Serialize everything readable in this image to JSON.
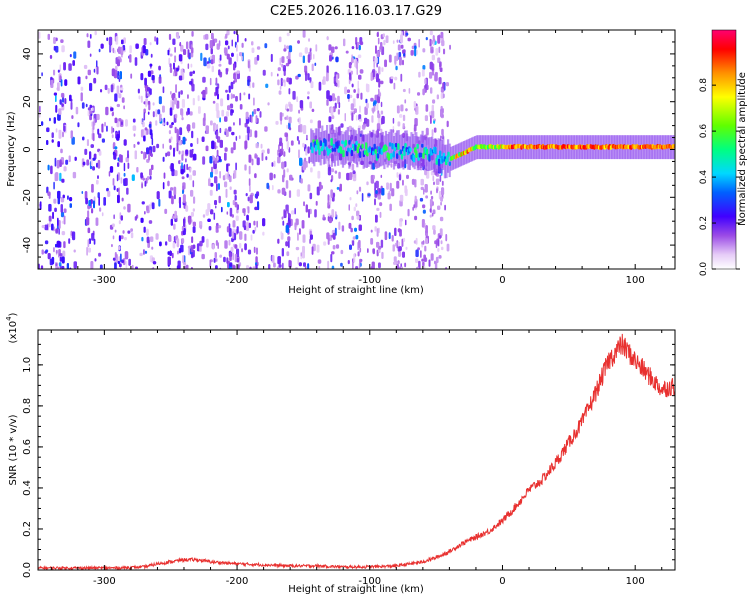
{
  "figure": {
    "title": "C2E5.2026.116.03.17.G29"
  },
  "colorbar": {
    "label": "Normalized spectral amplitude",
    "ticks": [
      "0.0",
      "0.2",
      "0.4",
      "0.6",
      "0.8"
    ]
  },
  "chart_data": [
    {
      "type": "heatmap",
      "xlabel": "Height of straight line (km)",
      "ylabel": "Frequency (Hz)",
      "xlim": [
        -350,
        130
      ],
      "ylim": [
        -50,
        50
      ],
      "x_ticks": [
        -300,
        -200,
        -100,
        0,
        100
      ],
      "y_ticks": [
        -40,
        -20,
        0,
        20,
        40
      ],
      "colorscale": [
        "#ffffff",
        "#e9d7f7",
        "#b57be6",
        "#7a1fe0",
        "#3a00ff",
        "#0040ff",
        "#00c8ff",
        "#00ff80",
        "#80ff00",
        "#ffff00",
        "#ff8000",
        "#ff0000",
        "#ff0080"
      ],
      "zlim": [
        0.0,
        1.0
      ],
      "description_features": {
        "noise_region_x": [
          -350,
          -40
        ],
        "carrier_start_x": -145,
        "carrier_frequency_hz": [
          [
            -145,
            2
          ],
          [
            -100,
            0
          ],
          [
            -60,
            -1
          ],
          [
            -40,
            -4
          ],
          [
            -20,
            1
          ],
          [
            0,
            1
          ],
          [
            130,
            1
          ]
        ]
      }
    },
    {
      "type": "line",
      "xlabel": "Height of straight line (km)",
      "ylabel": "SNR (10 * v/v)",
      "ylabel_exponent": "(x10",
      "ylabel_exponent_power": "4",
      "xlim": [
        -350,
        130
      ],
      "ylim": [
        0.0,
        1.17
      ],
      "x_ticks": [
        -300,
        -200,
        -100,
        0,
        100
      ],
      "y_ticks": [
        "0.0",
        "0.2",
        "0.4",
        "0.6",
        "0.8",
        "1.0"
      ],
      "series": [
        {
          "color": "#e8302f",
          "x": [
            -350,
            -330,
            -310,
            -290,
            -270,
            -260,
            -250,
            -240,
            -230,
            -220,
            -200,
            -180,
            -160,
            -140,
            -120,
            -100,
            -80,
            -60,
            -50,
            -40,
            -30,
            -20,
            -10,
            0,
            10,
            20,
            30,
            40,
            50,
            60,
            70,
            80,
            90,
            100,
            110,
            120,
            130
          ],
          "y": [
            0.01,
            0.01,
            0.01,
            0.01,
            0.015,
            0.03,
            0.04,
            0.05,
            0.05,
            0.04,
            0.03,
            0.025,
            0.02,
            0.02,
            0.015,
            0.015,
            0.02,
            0.04,
            0.06,
            0.09,
            0.13,
            0.16,
            0.19,
            0.24,
            0.31,
            0.39,
            0.44,
            0.52,
            0.62,
            0.72,
            0.86,
            1.02,
            1.1,
            1.02,
            0.95,
            0.88,
            0.9
          ]
        }
      ]
    }
  ]
}
